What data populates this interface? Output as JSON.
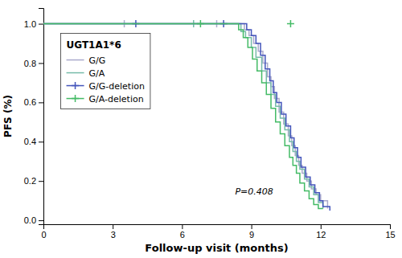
{
  "chart_data": {
    "type": "step",
    "xlabel": "Follow-up visit (months)",
    "ylabel": "PFS (%)",
    "xlim": [
      0,
      15
    ],
    "ylim": [
      -0.02,
      1.08
    ],
    "xticks": [
      0,
      3,
      6,
      9,
      12,
      15
    ],
    "yticks": [
      {
        "value": 0.0,
        "label": "0.0"
      },
      0.2,
      0.4,
      0.6,
      0.8,
      {
        "value": 1.0,
        "label": "1.0"
      }
    ],
    "annotations": [
      {
        "text": "P=0.408",
        "x": 8.3,
        "y": 0.13
      }
    ],
    "legend_title": "UGT1A1*6",
    "legend": "upper left",
    "series": [
      {
        "name": "G/G",
        "color": "#aaaacc",
        "marker": "vline",
        "censor_times": [
          3.5,
          7.5
        ],
        "censor_values": [
          1.0,
          1.0
        ],
        "x": [
          0,
          8.5,
          8.7,
          8.9,
          9.1,
          9.3,
          9.5,
          9.7,
          9.85,
          10.0,
          10.2,
          10.4,
          10.6,
          10.75,
          10.9,
          11.05,
          11.2,
          11.4,
          11.6,
          11.8,
          12.0,
          12.3
        ],
        "values": [
          1.0,
          1.0,
          0.97,
          0.94,
          0.9,
          0.86,
          0.8,
          0.73,
          0.68,
          0.62,
          0.55,
          0.49,
          0.43,
          0.38,
          0.33,
          0.28,
          0.24,
          0.2,
          0.16,
          0.13,
          0.1,
          0.06
        ]
      },
      {
        "name": "G/A",
        "color": "#77bbaa",
        "marker": "vline",
        "censor_times": [
          6.5
        ],
        "censor_values": [
          1.0
        ],
        "x": [
          0,
          8.3,
          8.55,
          8.75,
          9.0,
          9.2,
          9.45,
          9.65,
          9.85,
          10.05,
          10.25,
          10.45,
          10.65,
          10.8,
          10.95,
          11.1,
          11.3,
          11.5,
          11.7,
          11.9,
          12.1
        ],
        "values": [
          1.0,
          1.0,
          0.96,
          0.93,
          0.88,
          0.83,
          0.76,
          0.7,
          0.64,
          0.58,
          0.52,
          0.46,
          0.4,
          0.35,
          0.3,
          0.26,
          0.21,
          0.17,
          0.13,
          0.09,
          0.06
        ]
      },
      {
        "name": "G/G-deletion",
        "color": "#4455bb",
        "marker": "plus",
        "censor_times": [
          4.0,
          7.8
        ],
        "censor_values": [
          1.0,
          1.0
        ],
        "x": [
          0,
          8.6,
          8.8,
          9.0,
          9.2,
          9.4,
          9.6,
          9.8,
          9.95,
          10.1,
          10.3,
          10.5,
          10.7,
          10.85,
          11.0,
          11.15,
          11.35,
          11.55,
          11.75,
          11.95,
          12.1,
          12.4
        ],
        "values": [
          1.0,
          1.0,
          0.97,
          0.94,
          0.9,
          0.84,
          0.77,
          0.71,
          0.65,
          0.6,
          0.54,
          0.48,
          0.42,
          0.37,
          0.32,
          0.27,
          0.22,
          0.18,
          0.14,
          0.1,
          0.07,
          0.05
        ]
      },
      {
        "name": "G/A-deletion",
        "color": "#44bb66",
        "marker": "plus",
        "censor_times": [
          6.8,
          10.7
        ],
        "censor_values": [
          1.0,
          1.0
        ],
        "x": [
          0,
          8.2,
          8.45,
          8.65,
          8.85,
          9.05,
          9.25,
          9.45,
          9.65,
          9.85,
          10.05,
          10.25,
          10.45,
          10.65,
          10.8,
          10.95,
          11.1,
          11.3,
          11.5,
          11.7,
          11.9,
          12.1
        ],
        "values": [
          1.0,
          1.0,
          0.97,
          0.93,
          0.88,
          0.82,
          0.76,
          0.7,
          0.64,
          0.57,
          0.5,
          0.44,
          0.38,
          0.32,
          0.28,
          0.24,
          0.19,
          0.15,
          0.11,
          0.08,
          0.06,
          0.06
        ]
      }
    ]
  }
}
